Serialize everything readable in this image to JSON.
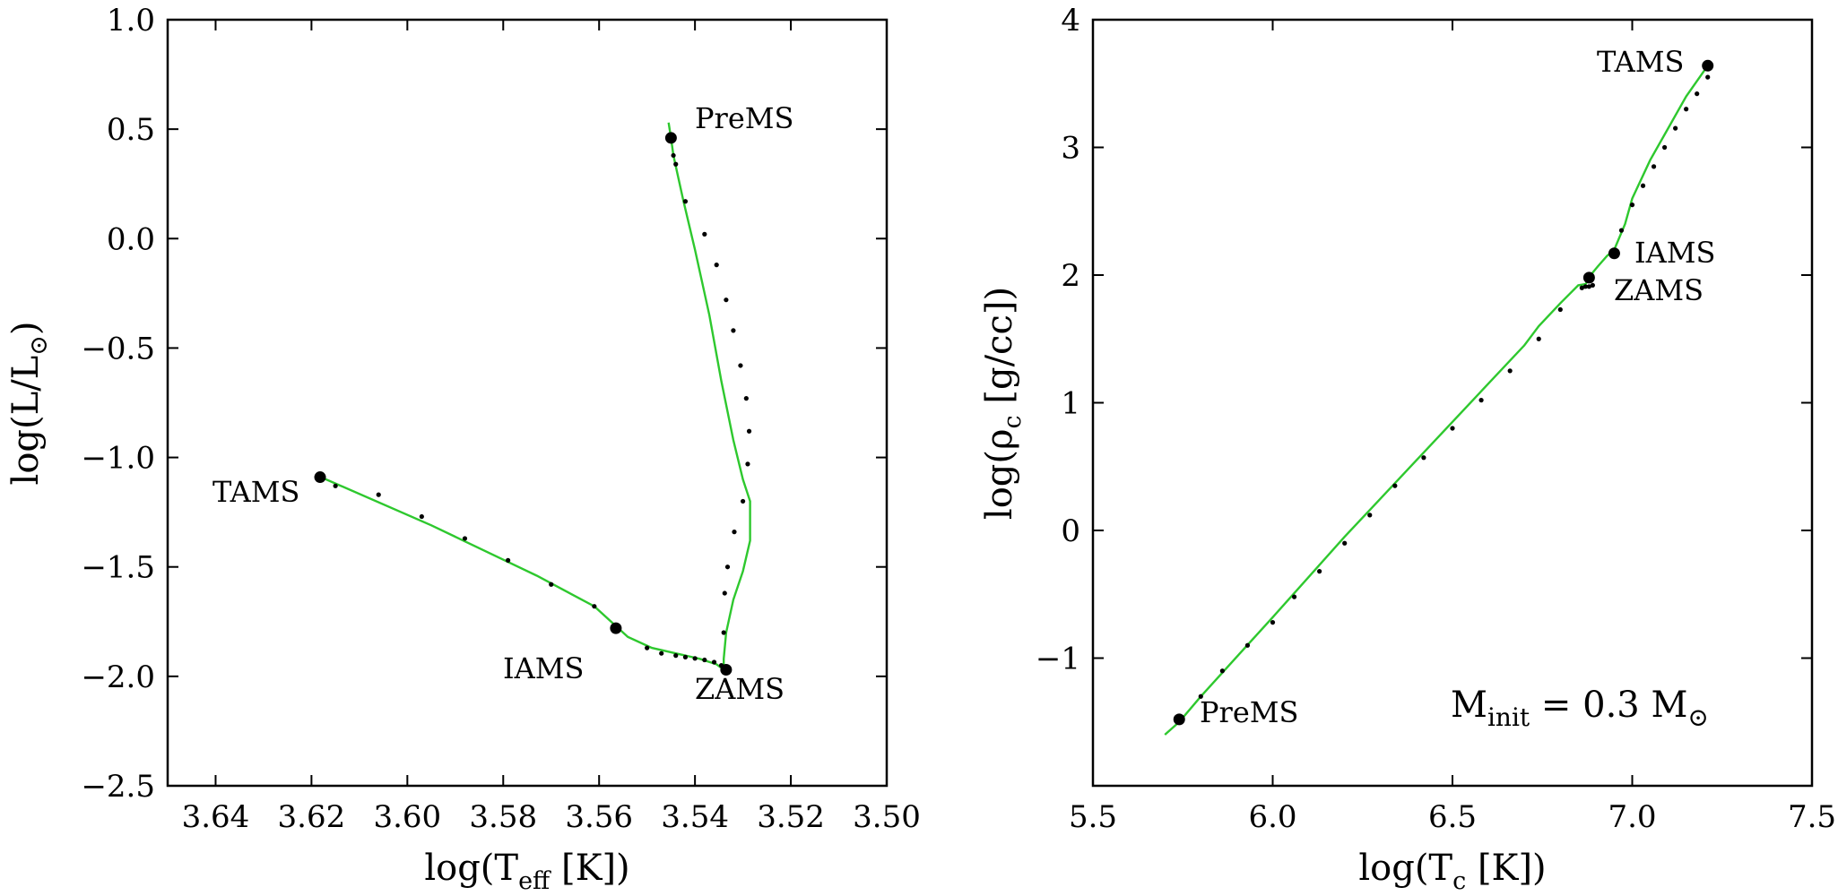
{
  "chart_data": [
    {
      "type": "line",
      "panel": "left",
      "title": "",
      "xlabel_parts": [
        "log(T",
        "eff",
        " [K])"
      ],
      "ylabel_parts": [
        "log(L/L",
        "⊙",
        ")"
      ],
      "xlim": [
        3.65,
        3.5
      ],
      "ylim": [
        -2.5,
        1.0
      ],
      "xticks": [
        3.64,
        3.62,
        3.6,
        3.58,
        3.56,
        3.54,
        3.52,
        3.5
      ],
      "xtick_labels": [
        "3.64",
        "3.62",
        "3.60",
        "3.58",
        "3.56",
        "3.54",
        "3.52",
        "3.50"
      ],
      "yticks": [
        1.0,
        0.5,
        0.0,
        -0.5,
        -1.0,
        -1.5,
        -2.0,
        -2.5
      ],
      "ytick_labels": [
        "1.0",
        "0.5",
        "0.0",
        "−0.5",
        "−1.0",
        "−1.5",
        "−2.0",
        "−2.5"
      ],
      "track_color": "#2ec82e",
      "series": [
        {
          "name": "evolutionary track",
          "x": [
            3.5455,
            3.545,
            3.5445,
            3.5425,
            3.54,
            3.537,
            3.5345,
            3.532,
            3.53,
            3.5285,
            3.5285,
            3.53,
            3.532,
            3.5335,
            3.534,
            3.534,
            3.5355,
            3.539,
            3.543,
            3.549,
            3.554,
            3.556,
            3.561,
            3.573,
            3.595,
            3.618
          ],
          "y": [
            0.53,
            0.46,
            0.38,
            0.18,
            -0.05,
            -0.35,
            -0.65,
            -0.92,
            -1.1,
            -1.2,
            -1.38,
            -1.52,
            -1.65,
            -1.8,
            -1.92,
            -1.97,
            -1.945,
            -1.92,
            -1.9,
            -1.87,
            -1.82,
            -1.78,
            -1.68,
            -1.54,
            -1.31,
            -1.09
          ]
        }
      ],
      "markers_small": {
        "x": [
          3.5445,
          3.544,
          3.542,
          3.538,
          3.5355,
          3.5335,
          3.532,
          3.5305,
          3.5293,
          3.5287,
          3.529,
          3.53,
          3.5318,
          3.5332,
          3.5338,
          3.534,
          3.5345,
          3.536,
          3.538,
          3.54,
          3.542,
          3.544,
          3.547,
          3.55,
          3.561,
          3.57,
          3.579,
          3.588,
          3.597,
          3.606,
          3.615
        ],
        "y": [
          0.38,
          0.34,
          0.17,
          0.02,
          -0.12,
          -0.28,
          -0.42,
          -0.58,
          -0.73,
          -0.88,
          -1.03,
          -1.2,
          -1.34,
          -1.5,
          -1.62,
          -1.8,
          -1.95,
          -1.935,
          -1.925,
          -1.918,
          -1.912,
          -1.905,
          -1.895,
          -1.87,
          -1.68,
          -1.58,
          -1.47,
          -1.37,
          -1.27,
          -1.17,
          -1.13
        ]
      },
      "points": [
        {
          "label": "PreMS",
          "x": 3.545,
          "y": 0.46
        },
        {
          "label": "ZAMS",
          "x": 3.5335,
          "y": -1.97
        },
        {
          "label": "IAMS",
          "x": 3.5565,
          "y": -1.78
        },
        {
          "label": "TAMS",
          "x": 3.6182,
          "y": -1.09
        }
      ]
    },
    {
      "type": "line",
      "panel": "right",
      "title": "",
      "xlabel_parts": [
        "log(T",
        "c",
        " [K])"
      ],
      "ylabel_parts": [
        "log(ρ",
        "c",
        " [g/cc])"
      ],
      "xlim": [
        5.5,
        7.5
      ],
      "ylim": [
        -2.0,
        4.0
      ],
      "xticks": [
        5.5,
        6.0,
        6.5,
        7.0,
        7.5
      ],
      "xtick_labels": [
        "5.5",
        "6.0",
        "6.5",
        "7.0",
        "7.5"
      ],
      "yticks": [
        4,
        3,
        2,
        1,
        0,
        -1
      ],
      "ytick_labels": [
        "4",
        "3",
        "2",
        "1",
        "0",
        "−1"
      ],
      "track_color": "#2ec82e",
      "annotation_parts": [
        "M",
        "init",
        " = 0.3 M",
        "⊙"
      ],
      "series": [
        {
          "name": "evolutionary track",
          "x": [
            5.7,
            5.74,
            5.8,
            6.0,
            6.2,
            6.4,
            6.6,
            6.7,
            6.74,
            6.8,
            6.85,
            6.87,
            6.875,
            6.88,
            6.89,
            6.905,
            6.93,
            6.95,
            6.98,
            7.0,
            7.05,
            7.1,
            7.15,
            7.21
          ],
          "y": [
            -1.6,
            -1.5,
            -1.3,
            -0.68,
            -0.05,
            0.55,
            1.15,
            1.45,
            1.6,
            1.78,
            1.92,
            1.93,
            1.95,
            1.98,
            2.02,
            2.07,
            2.15,
            2.2,
            2.4,
            2.6,
            2.9,
            3.15,
            3.4,
            3.64
          ]
        }
      ],
      "markers_small": {
        "x": [
          5.8,
          5.86,
          5.93,
          6.0,
          6.06,
          6.13,
          6.2,
          6.27,
          6.34,
          6.42,
          6.5,
          6.58,
          6.66,
          6.74,
          6.8,
          6.86,
          6.87,
          6.88,
          6.89,
          6.97,
          7.0,
          7.03,
          7.06,
          7.09,
          7.12,
          7.15,
          7.18,
          7.21
        ],
        "y": [
          -1.3,
          -1.1,
          -0.9,
          -0.72,
          -0.52,
          -0.32,
          -0.1,
          0.12,
          0.35,
          0.57,
          0.8,
          1.02,
          1.25,
          1.5,
          1.73,
          1.9,
          1.91,
          1.91,
          1.92,
          2.35,
          2.55,
          2.7,
          2.85,
          3.0,
          3.15,
          3.3,
          3.42,
          3.55
        ]
      },
      "points": [
        {
          "label": "PreMS",
          "x": 5.74,
          "y": -1.48
        },
        {
          "label": "ZAMS",
          "x": 6.88,
          "y": 1.98
        },
        {
          "label": "IAMS",
          "x": 6.95,
          "y": 2.17
        },
        {
          "label": "TAMS",
          "x": 7.21,
          "y": 3.64
        }
      ]
    }
  ]
}
